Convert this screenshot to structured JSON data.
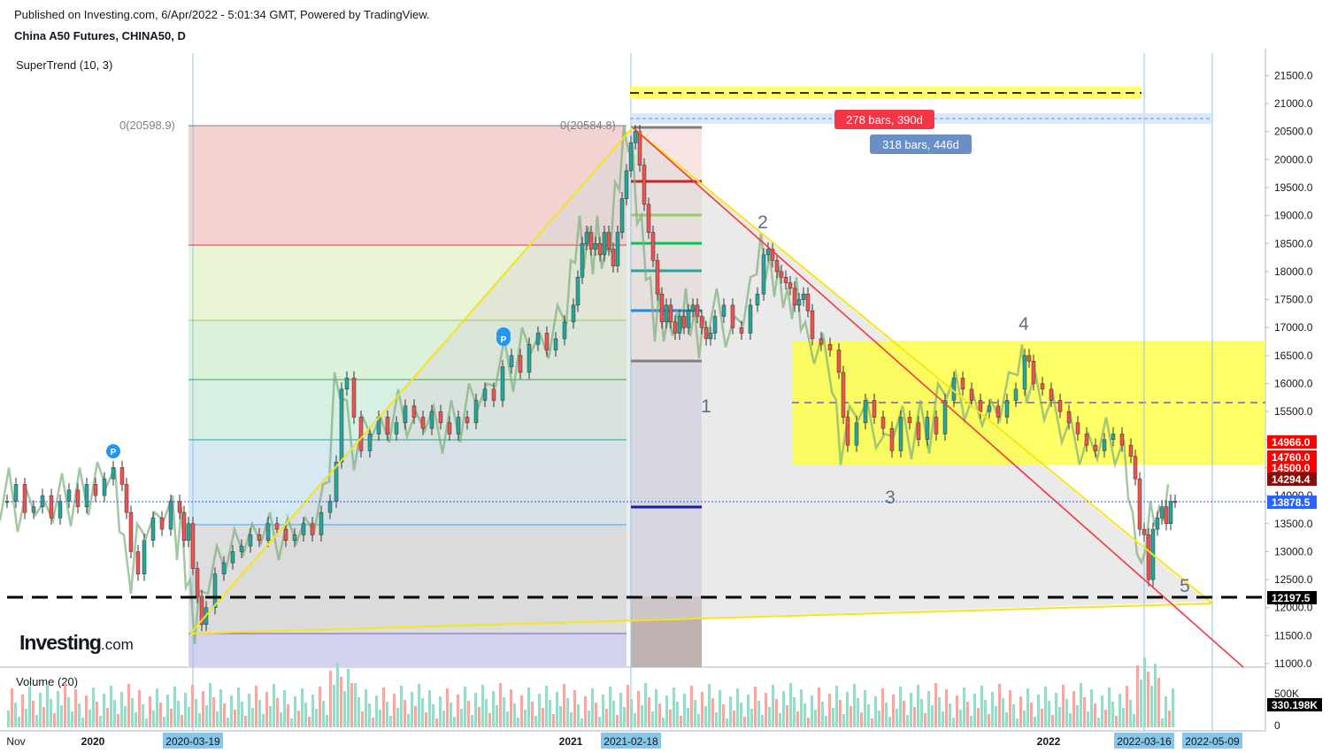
{
  "header": {
    "published": "Published on Investing.com, 6/Apr/2022 - 5:01:34 GMT, Powered by TradingView.",
    "title": "China A50 Futures, CHINA50, D"
  },
  "indicator": "SuperTrend (10, 3)",
  "volume_label": "Volume (20)",
  "logo": {
    "main": "Investing",
    "suffix": ".com"
  },
  "colors": {
    "up": "#26a69a",
    "down": "#ef5350",
    "fib_line": "#808080",
    "yellow_zone": "#ffff00",
    "red_trend": "#f23645",
    "supertrend_up": "#4caf50",
    "supertrend_down": "#8d4040"
  },
  "chart_data": {
    "type": "candlestick",
    "symbol": "China A50 Futures, CHINA50, D",
    "y_axis": {
      "ticks": [
        11000,
        11500,
        12000,
        12500,
        13000,
        13500,
        14000,
        14500,
        15000,
        15500,
        16000,
        16500,
        17000,
        17500,
        18000,
        18500,
        19000,
        19500,
        20000,
        20500,
        21000,
        21500
      ]
    },
    "x_axis": {
      "labels": [
        "Nov",
        "2020",
        "2021",
        "2022"
      ],
      "highlighted_dates": [
        "2020-03-19",
        "2021-02-18",
        "2022-03-16",
        "2022-05-09"
      ]
    },
    "price_tags": [
      {
        "value": "14966.0",
        "color": "#ff0000"
      },
      {
        "value": "14760.0",
        "color": "#ff0000"
      },
      {
        "value": "14500.0",
        "color": "#ff0000"
      },
      {
        "value": "14294.4",
        "color": "#880e0e"
      },
      {
        "value": "13878.5",
        "color": "#2962ff"
      },
      {
        "value": "12197.5",
        "color": "#000000"
      }
    ],
    "fib_labels": [
      {
        "text": "0(20598.9)"
      },
      {
        "text": "0(20584.8)"
      }
    ],
    "wave_labels": [
      "1",
      "2",
      "3",
      "4",
      "5"
    ],
    "measure_labels": [
      {
        "text": "278 bars, 390d",
        "color": "#f23645"
      },
      {
        "text": "318 bars, 446d",
        "color": "#6a8fc7"
      }
    ],
    "volume_axis": {
      "ticks": [
        "500K",
        "0"
      ],
      "last": "330.198K"
    },
    "series": [
      {
        "name": "Price",
        "points": [
          [
            0,
            13900
          ],
          [
            10,
            14200
          ],
          [
            20,
            13700
          ],
          [
            30,
            13800
          ],
          [
            40,
            14000
          ],
          [
            50,
            13600
          ],
          [
            60,
            13900
          ],
          [
            70,
            14100
          ],
          [
            80,
            13800
          ],
          [
            90,
            14200
          ],
          [
            100,
            14000
          ],
          [
            110,
            14300
          ],
          [
            120,
            14500
          ],
          [
            130,
            14200
          ],
          [
            135,
            13700
          ],
          [
            140,
            13000
          ],
          [
            148,
            12600
          ],
          [
            155,
            13200
          ],
          [
            165,
            13600
          ],
          [
            175,
            13400
          ],
          [
            185,
            13900
          ],
          [
            195,
            13700
          ],
          [
            200,
            13200
          ],
          [
            205,
            13500
          ],
          [
            210,
            12700
          ],
          [
            215,
            12200
          ],
          [
            220,
            11700
          ],
          [
            225,
            12000
          ],
          [
            235,
            12600
          ],
          [
            245,
            12800
          ],
          [
            255,
            13000
          ],
          [
            265,
            13100
          ],
          [
            275,
            13300
          ],
          [
            285,
            13200
          ],
          [
            295,
            13500
          ],
          [
            305,
            13400
          ],
          [
            315,
            13200
          ],
          [
            325,
            13300
          ],
          [
            335,
            13500
          ],
          [
            345,
            13300
          ],
          [
            355,
            13700
          ],
          [
            365,
            13900
          ],
          [
            372,
            14600
          ],
          [
            378,
            15900
          ],
          [
            384,
            16100
          ],
          [
            392,
            15400
          ],
          [
            400,
            14800
          ],
          [
            410,
            15100
          ],
          [
            420,
            15400
          ],
          [
            430,
            15100
          ],
          [
            440,
            15300
          ],
          [
            450,
            15600
          ],
          [
            460,
            15400
          ],
          [
            470,
            15200
          ],
          [
            480,
            15500
          ],
          [
            490,
            15300
          ],
          [
            500,
            15100
          ],
          [
            510,
            15400
          ],
          [
            520,
            15300
          ],
          [
            530,
            15700
          ],
          [
            540,
            15900
          ],
          [
            550,
            15700
          ],
          [
            560,
            16300
          ],
          [
            570,
            16500
          ],
          [
            580,
            16200
          ],
          [
            590,
            16700
          ],
          [
            600,
            16900
          ],
          [
            610,
            16600
          ],
          [
            620,
            16800
          ],
          [
            630,
            17100
          ],
          [
            640,
            17400
          ],
          [
            645,
            17900
          ],
          [
            650,
            18500
          ],
          [
            655,
            18700
          ],
          [
            660,
            18400
          ],
          [
            665,
            18500
          ],
          [
            670,
            18300
          ],
          [
            675,
            18700
          ],
          [
            680,
            18400
          ],
          [
            685,
            18100
          ],
          [
            690,
            18700
          ],
          [
            695,
            19300
          ],
          [
            700,
            19800
          ],
          [
            705,
            20300
          ],
          [
            710,
            20500
          ],
          [
            715,
            19900
          ],
          [
            720,
            19200
          ],
          [
            725,
            18700
          ],
          [
            730,
            18200
          ],
          [
            735,
            17600
          ],
          [
            740,
            17100
          ],
          [
            745,
            17400
          ],
          [
            750,
            17100
          ],
          [
            755,
            16900
          ],
          [
            760,
            17200
          ],
          [
            765,
            17000
          ],
          [
            770,
            17300
          ],
          [
            775,
            17400
          ],
          [
            780,
            17200
          ],
          [
            785,
            17000
          ],
          [
            790,
            16800
          ],
          [
            795,
            16900
          ],
          [
            800,
            17200
          ],
          [
            810,
            17400
          ],
          [
            820,
            17000
          ],
          [
            830,
            16900
          ],
          [
            840,
            17400
          ],
          [
            848,
            17600
          ],
          [
            855,
            18300
          ],
          [
            860,
            18400
          ],
          [
            865,
            18200
          ],
          [
            870,
            18000
          ],
          [
            875,
            17900
          ],
          [
            880,
            17800
          ],
          [
            885,
            17700
          ],
          [
            890,
            17400
          ],
          [
            895,
            17500
          ],
          [
            900,
            17600
          ],
          [
            905,
            17300
          ],
          [
            910,
            16800
          ],
          [
            920,
            16700
          ],
          [
            930,
            16600
          ],
          [
            940,
            16200
          ],
          [
            945,
            15400
          ],
          [
            950,
            14900
          ],
          [
            960,
            15300
          ],
          [
            970,
            15700
          ],
          [
            980,
            15400
          ],
          [
            990,
            15200
          ],
          [
            1000,
            14800
          ],
          [
            1010,
            15400
          ],
          [
            1020,
            15300
          ],
          [
            1030,
            15000
          ],
          [
            1040,
            15400
          ],
          [
            1050,
            15100
          ],
          [
            1060,
            15700
          ],
          [
            1070,
            16100
          ],
          [
            1080,
            15900
          ],
          [
            1090,
            15700
          ],
          [
            1100,
            15500
          ],
          [
            1110,
            15600
          ],
          [
            1120,
            15400
          ],
          [
            1130,
            15700
          ],
          [
            1140,
            15900
          ],
          [
            1150,
            16500
          ],
          [
            1155,
            16400
          ],
          [
            1160,
            16000
          ],
          [
            1170,
            15900
          ],
          [
            1180,
            15700
          ],
          [
            1190,
            15500
          ],
          [
            1200,
            15300
          ],
          [
            1210,
            15100
          ],
          [
            1220,
            14900
          ],
          [
            1230,
            14800
          ],
          [
            1240,
            15000
          ],
          [
            1250,
            15100
          ],
          [
            1260,
            14900
          ],
          [
            1270,
            14700
          ],
          [
            1275,
            14300
          ],
          [
            1280,
            13400
          ],
          [
            1285,
            13300
          ],
          [
            1290,
            12500
          ],
          [
            1295,
            13400
          ],
          [
            1300,
            13600
          ],
          [
            1305,
            13800
          ],
          [
            1310,
            13500
          ],
          [
            1315,
            13900
          ],
          [
            1320,
            13900
          ]
        ]
      }
    ]
  }
}
